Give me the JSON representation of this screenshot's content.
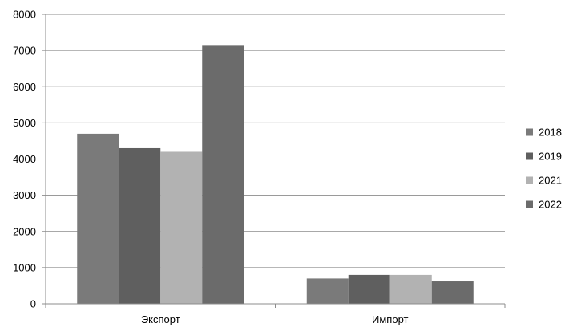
{
  "chart_data": {
    "type": "bar",
    "categories": [
      "Экспорт",
      "Импорт"
    ],
    "series": [
      {
        "name": "2018",
        "values": [
          4700,
          700
        ],
        "color": "#7a7a7a"
      },
      {
        "name": "2019",
        "values": [
          4300,
          800
        ],
        "color": "#5f5f5f"
      },
      {
        "name": "2021",
        "values": [
          4200,
          800
        ],
        "color": "#b2b2b2"
      },
      {
        "name": "2022",
        "values": [
          7150,
          620
        ],
        "color": "#6b6b6b"
      }
    ],
    "yticks": [
      "0",
      "1000",
      "2000",
      "3000",
      "4000",
      "5000",
      "6000",
      "7000",
      "8000"
    ],
    "ylim": [
      0,
      8000
    ],
    "grid": true,
    "legend_position": "right"
  }
}
